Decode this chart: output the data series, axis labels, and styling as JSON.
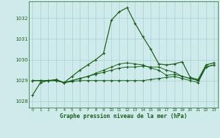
{
  "title": "Graphe pression niveau de la mer (hPa)",
  "background_color": "#ceeaea",
  "grid_color": "#a8d0d0",
  "line_color_main": "#1a5c1a",
  "line_color_flat": "#1a5c1a",
  "xlim": [
    -0.5,
    23.5
  ],
  "ylim": [
    1027.7,
    1032.8
  ],
  "yticks": [
    1028,
    1029,
    1030,
    1031,
    1032
  ],
  "xticks": [
    0,
    1,
    2,
    3,
    4,
    5,
    6,
    7,
    8,
    9,
    10,
    11,
    12,
    13,
    14,
    15,
    16,
    17,
    18,
    19,
    20,
    21,
    22,
    23
  ],
  "series_main": [
    1028.3,
    1028.9,
    1029.0,
    1029.05,
    1028.9,
    1029.2,
    1029.5,
    1029.75,
    1030.0,
    1030.3,
    1031.9,
    1032.3,
    1032.5,
    1031.75,
    1031.1,
    1030.5,
    1029.8,
    1029.75,
    1029.8,
    1029.9,
    1029.15,
    1029.05,
    1029.75,
    1029.85
  ],
  "series_flat1": [
    1029.0,
    1029.0,
    1029.0,
    1029.0,
    1028.9,
    1028.95,
    1029.0,
    1029.0,
    1029.0,
    1029.0,
    1029.0,
    1029.0,
    1029.0,
    1029.0,
    1029.0,
    1029.05,
    1029.1,
    1029.15,
    1029.2,
    1029.1,
    1029.0,
    1028.9,
    1029.65,
    1029.75
  ],
  "series_flat2": [
    1029.0,
    1029.0,
    1029.0,
    1029.0,
    1028.9,
    1029.0,
    1029.1,
    1029.2,
    1029.3,
    1029.4,
    1029.5,
    1029.6,
    1029.65,
    1029.65,
    1029.7,
    1029.65,
    1029.65,
    1029.5,
    1029.4,
    1029.2,
    1029.1,
    1029.0,
    1029.65,
    1029.75
  ],
  "series_flat3": [
    1029.0,
    1029.0,
    1029.0,
    1029.0,
    1028.9,
    1029.0,
    1029.1,
    1029.2,
    1029.35,
    1029.5,
    1029.65,
    1029.8,
    1029.85,
    1029.8,
    1029.75,
    1029.6,
    1029.5,
    1029.25,
    1029.3,
    1029.2,
    1029.1,
    1029.0,
    1029.65,
    1029.75
  ]
}
